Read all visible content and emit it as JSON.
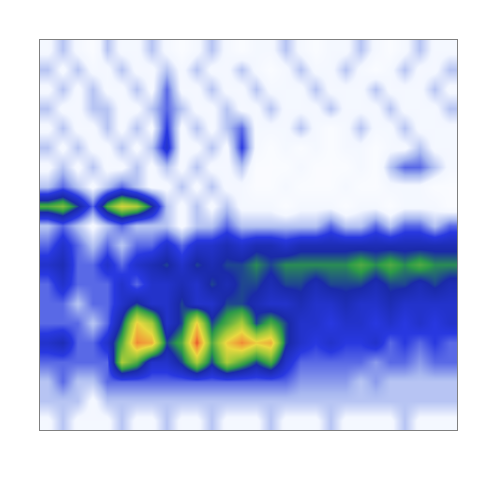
{
  "chart_data": {
    "type": "heatmap",
    "tick_labels": false,
    "grid": false,
    "zlim": [
      0,
      10
    ],
    "z": [
      [
        1,
        2,
        1,
        0.5,
        2,
        1,
        1,
        2,
        1,
        0.5,
        1,
        2,
        1,
        0.5,
        1,
        1,
        2,
        1,
        0.5,
        1,
        1,
        2,
        1,
        0.5,
        1,
        2,
        1,
        1
      ],
      [
        2,
        1,
        2,
        1,
        1,
        2,
        1,
        1,
        2,
        1,
        2,
        1,
        1,
        2,
        1,
        0.5,
        1,
        2,
        1,
        1,
        2,
        1,
        0.5,
        1,
        2,
        1,
        1,
        2
      ],
      [
        1,
        2,
        1,
        2,
        1,
        1,
        2,
        1,
        3,
        1,
        1,
        2,
        1,
        1,
        2,
        1,
        1,
        1,
        2,
        1,
        1,
        1,
        2,
        1,
        1,
        1,
        2,
        1
      ],
      [
        2,
        1,
        1,
        2,
        2,
        1,
        1,
        2,
        3,
        2,
        1,
        1,
        2,
        1,
        1,
        2,
        1,
        1,
        1,
        2,
        1,
        1,
        1,
        2,
        1,
        1,
        1,
        2
      ],
      [
        1,
        2,
        1,
        1,
        2,
        1,
        2,
        1,
        3.5,
        1,
        2,
        1,
        2,
        3,
        1,
        1,
        1,
        2,
        1,
        0.5,
        1,
        2,
        1,
        1,
        2,
        1,
        1,
        1
      ],
      [
        2,
        1,
        2,
        1,
        1,
        2,
        1,
        2,
        4,
        1,
        1,
        2,
        1,
        3.5,
        1,
        0.5,
        1,
        0.5,
        1,
        0.5,
        1,
        1,
        0.5,
        1,
        1,
        2,
        1,
        1
      ],
      [
        1,
        2,
        1,
        2,
        1,
        1,
        2,
        1,
        2,
        1,
        2,
        1,
        1,
        2,
        0.5,
        0.5,
        0.5,
        1,
        0.5,
        0.5,
        0.5,
        1,
        0.5,
        2,
        3,
        3,
        2,
        1
      ],
      [
        2,
        3,
        2,
        1,
        2,
        3,
        2,
        1,
        1,
        2,
        1,
        2,
        1,
        1,
        0.5,
        0.5,
        1,
        0.5,
        0.5,
        0.5,
        1,
        0.5,
        0.5,
        1,
        1,
        1,
        0.5,
        0.5
      ],
      [
        6,
        6.5,
        5,
        3,
        6,
        7.5,
        7,
        5,
        2,
        1,
        2,
        1,
        2,
        1,
        1,
        1,
        0.5,
        1,
        1,
        1,
        0.5,
        1,
        1,
        0.5,
        1,
        1,
        1,
        0.5
      ],
      [
        2,
        3,
        2,
        1,
        2,
        3,
        2,
        2,
        2,
        1,
        2,
        2,
        3,
        2,
        2,
        2,
        2,
        2,
        2,
        3,
        2,
        2,
        3,
        2,
        3,
        3,
        2,
        3
      ],
      [
        3,
        4,
        3,
        2,
        3,
        2,
        3,
        3,
        4,
        3,
        4,
        4,
        4.5,
        4,
        4.5,
        4.5,
        4,
        4.5,
        4.5,
        4.5,
        4.5,
        4.5,
        4.5,
        4.5,
        4.5,
        4.5,
        4.5,
        4.5
      ],
      [
        4,
        4.5,
        3,
        3,
        4,
        3,
        4,
        4.5,
        5,
        4,
        5,
        4.5,
        5,
        5,
        5.5,
        5,
        5.5,
        5.5,
        5.5,
        5.5,
        5.5,
        6,
        5.5,
        6,
        5.5,
        6,
        5.5,
        5.5
      ],
      [
        3,
        4,
        3,
        3,
        3,
        4,
        3,
        4,
        4,
        4.5,
        4,
        5,
        4.5,
        5,
        5,
        4.5,
        5,
        5,
        4.5,
        5,
        5,
        5,
        4.5,
        5,
        5,
        4.5,
        5,
        4.5
      ],
      [
        3,
        3,
        2,
        3,
        3,
        4,
        5,
        4,
        4,
        5,
        4,
        4,
        5,
        5,
        4.5,
        4,
        4,
        4.5,
        4,
        4,
        4.5,
        4,
        4,
        4.5,
        4,
        4,
        4,
        4
      ],
      [
        3,
        3,
        3,
        2,
        3,
        5,
        8,
        7,
        4,
        5,
        8,
        5,
        6,
        7,
        5,
        6,
        5,
        4,
        4,
        3.5,
        4,
        4,
        3.5,
        4,
        3.5,
        4,
        3.5,
        4
      ],
      [
        4,
        4.5,
        3,
        3,
        4,
        6,
        9,
        8.5,
        5,
        6,
        9.5,
        6,
        8,
        9,
        8,
        8.5,
        5,
        4,
        3.5,
        4,
        3.5,
        3.5,
        4,
        3,
        3.5,
        3,
        3.5,
        3
      ],
      [
        3,
        3,
        3,
        3,
        3,
        7,
        6,
        4,
        4,
        5,
        7,
        5,
        7,
        6,
        5,
        6,
        4,
        3,
        3,
        3,
        3,
        3,
        2.5,
        3,
        3,
        2.5,
        3,
        3
      ],
      [
        2,
        3,
        2,
        2,
        3,
        3,
        3,
        3,
        3,
        3,
        3,
        3,
        3,
        3,
        3,
        3,
        3,
        2.5,
        2.5,
        2.5,
        2.5,
        2,
        2.5,
        2,
        2,
        2,
        2,
        2
      ],
      [
        2,
        2,
        2,
        1,
        2,
        2,
        2,
        2,
        2,
        2,
        2,
        2,
        2,
        2,
        2,
        2,
        2,
        2,
        2,
        2,
        2,
        2,
        2,
        2,
        2,
        2,
        2,
        2
      ],
      [
        1,
        2,
        1,
        1,
        1,
        2,
        1,
        1,
        2,
        1,
        1,
        2,
        1,
        1,
        1,
        2,
        1,
        1,
        1,
        2,
        1,
        1,
        1,
        1,
        2,
        1,
        1,
        1
      ]
    ]
  }
}
